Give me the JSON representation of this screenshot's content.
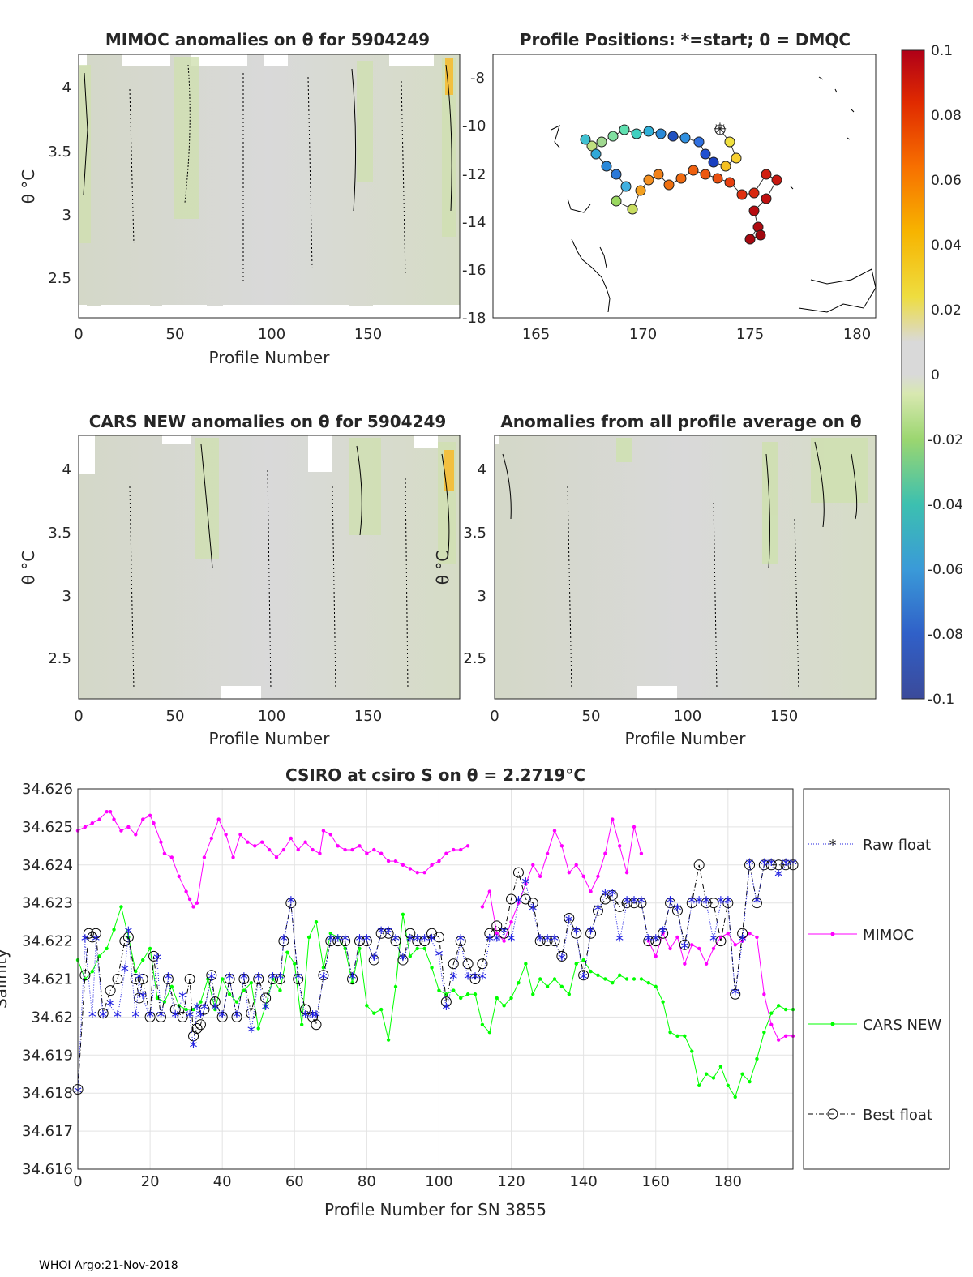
{
  "footer": "WHOI Argo:21-Nov-2018",
  "colorbar": {
    "ticks": [
      "0.1",
      "0.08",
      "0.06",
      "0.04",
      "0.02",
      "0",
      "-0.02",
      "-0.04",
      "-0.06",
      "-0.08",
      "-0.1"
    ],
    "range": [
      -0.1,
      0.1
    ]
  },
  "panels": [
    {
      "id": "mimoc",
      "title": "MIMOC anomalies on θ  for 5904249",
      "xlabel": "Profile Number",
      "ylabel": "θ °C",
      "xticks": [
        "0",
        "50",
        "100",
        "150"
      ],
      "yticks": [
        "4",
        "3.5",
        "3",
        "2.5"
      ]
    },
    {
      "id": "map",
      "title": "Profile Positions: *=start; 0 = DMQC",
      "xlabel": "",
      "ylabel": "",
      "xticks": [
        "165",
        "170",
        "175",
        "180"
      ],
      "yticks": [
        "-8",
        "-10",
        "-12",
        "-14",
        "-16",
        "-18"
      ]
    },
    {
      "id": "cars",
      "title": "CARS NEW anomalies on θ for 5904249",
      "xlabel": "Profile Number",
      "ylabel": "θ °C",
      "xticks": [
        "0",
        "50",
        "100",
        "150"
      ],
      "yticks": [
        "4",
        "3.5",
        "3",
        "2.5"
      ]
    },
    {
      "id": "avg",
      "title": "Anomalies from all profile average on θ",
      "xlabel": "Profile Number",
      "ylabel": "θ °C",
      "xticks": [
        "0",
        "50",
        "100",
        "150"
      ],
      "yticks": [
        "4",
        "3.5",
        "3",
        "2.5"
      ]
    }
  ],
  "chart_data": {
    "type": "line",
    "title": "CSIRO at csiro S on θ = 2.2719°C",
    "xlabel": "Profile Number for SN 3855",
    "ylabel": "Salinity",
    "xlim": [
      0,
      198
    ],
    "ylim": [
      34.616,
      34.626
    ],
    "grid": true,
    "xticks": [
      "0",
      "20",
      "40",
      "60",
      "80",
      "100",
      "120",
      "140",
      "160",
      "180"
    ],
    "yticks": [
      "34.626",
      "34.625",
      "34.624",
      "34.623",
      "34.622",
      "34.621",
      "34.62",
      "34.619",
      "34.618",
      "34.617",
      "34.616"
    ],
    "legend": [
      "Raw float",
      "MIMOC",
      "CARS NEW",
      "Best float"
    ],
    "legend_position": "right-outside",
    "series": [
      {
        "name": "MIMOC",
        "color": "#ff00ff",
        "marker": "dot",
        "x": [
          0,
          2,
          4,
          6,
          8,
          9,
          10,
          12,
          14,
          16,
          18,
          20,
          21,
          23,
          24,
          26,
          28,
          30,
          31,
          32,
          33,
          35,
          37,
          39,
          41,
          43,
          45,
          47,
          49,
          51,
          53,
          55,
          57,
          59,
          61,
          63,
          65,
          67,
          68,
          70,
          72,
          74,
          76,
          78,
          80,
          82,
          84,
          86,
          88,
          90,
          92,
          94,
          96,
          98,
          100,
          102,
          104,
          106,
          108
        ],
        "y": [
          34.6249,
          34.625,
          34.6251,
          34.6252,
          34.6254,
          34.6254,
          34.6252,
          34.6249,
          34.625,
          34.6248,
          34.6252,
          34.6253,
          34.6251,
          34.6246,
          34.6243,
          34.6242,
          34.6237,
          34.6233,
          34.6231,
          34.6229,
          34.623,
          34.6242,
          34.6247,
          34.6252,
          34.6248,
          34.6242,
          34.6248,
          34.6246,
          34.6245,
          34.6246,
          34.6244,
          34.6242,
          34.6244,
          34.6247,
          34.6244,
          34.6246,
          34.6244,
          34.6243,
          34.6249,
          34.6248,
          34.6245,
          34.6244,
          34.6244,
          34.6245,
          34.6243,
          34.6244,
          34.6243,
          34.6241,
          34.6241,
          34.624,
          34.6239,
          34.6238,
          34.6238,
          34.624,
          34.6241,
          34.6243,
          34.6244,
          34.6244,
          34.6245
        ]
      },
      {
        "name": "MIMOC_b",
        "color": "#ff00ff",
        "marker": "dot",
        "x": [
          112,
          114,
          116,
          118,
          120,
          122,
          124,
          126,
          128,
          130,
          132,
          134,
          136,
          138,
          140,
          142,
          144,
          146,
          148,
          150,
          152,
          154,
          156
        ],
        "y": [
          34.6229,
          34.6233,
          34.6222,
          34.622,
          34.6225,
          34.623,
          34.6235,
          34.624,
          34.6237,
          34.6243,
          34.6249,
          34.6245,
          34.6238,
          34.624,
          34.6237,
          34.6233,
          34.6237,
          34.6243,
          34.6252,
          34.6245,
          34.6238,
          34.625,
          34.6243
        ]
      },
      {
        "name": "MIMOC_c",
        "color": "#ff00ff",
        "marker": "dot",
        "x": [
          158,
          160,
          162,
          164,
          166,
          168,
          170,
          172,
          174,
          176,
          178,
          180,
          182,
          184,
          186,
          188,
          190,
          192,
          194,
          196,
          198
        ],
        "y": [
          34.622,
          34.6216,
          34.6222,
          34.6218,
          34.6221,
          34.6214,
          34.6219,
          34.6218,
          34.6214,
          34.6218,
          34.6221,
          34.6222,
          34.6219,
          34.622,
          34.6222,
          34.6221,
          34.6206,
          34.6198,
          34.6194,
          34.6195,
          34.6195
        ]
      },
      {
        "name": "CARS NEW",
        "color": "#00ff00",
        "marker": "dot",
        "x": [
          0,
          2,
          4,
          6,
          8,
          10,
          12,
          14,
          16,
          18,
          20,
          22,
          24,
          26,
          28,
          30,
          32,
          34,
          36,
          38,
          40,
          42,
          44,
          46,
          48,
          50,
          52,
          54,
          56,
          58,
          60,
          62,
          64,
          66,
          68,
          70,
          72,
          74,
          76,
          78,
          80,
          82,
          84,
          86,
          88,
          90,
          92,
          94,
          96,
          98,
          100,
          102,
          104,
          106,
          108,
          110,
          112,
          114,
          116,
          118,
          120,
          122,
          124,
          126,
          128,
          130,
          132,
          134,
          136,
          138,
          140,
          142,
          144,
          146,
          148,
          150,
          152,
          154,
          156,
          158,
          160,
          162,
          164,
          166,
          168,
          170,
          172,
          174,
          176,
          178,
          180,
          182,
          184,
          186,
          188,
          190,
          192,
          194,
          196,
          198
        ],
        "y": [
          34.6215,
          34.621,
          34.6212,
          34.6216,
          34.6218,
          34.6223,
          34.6229,
          34.6221,
          34.6212,
          34.6215,
          34.6218,
          34.6205,
          34.6204,
          34.6208,
          34.6203,
          34.6202,
          34.6202,
          34.6204,
          34.621,
          34.6202,
          34.621,
          34.6206,
          34.6204,
          34.6207,
          34.6209,
          34.6197,
          34.6203,
          34.621,
          34.6207,
          34.6217,
          34.6214,
          34.6198,
          34.6221,
          34.6225,
          34.6213,
          34.6222,
          34.6221,
          34.6218,
          34.6209,
          34.6218,
          34.6203,
          34.6201,
          34.6202,
          34.6194,
          34.6208,
          34.6227,
          34.6216,
          34.6218,
          34.6218,
          34.6213,
          34.6207,
          34.6206,
          34.6207,
          34.6205,
          34.6206,
          34.6206,
          34.6198,
          34.6196,
          34.6205,
          34.6203,
          34.6205,
          34.6209,
          34.6214,
          34.6206,
          34.621,
          34.6208,
          34.621,
          34.6208,
          34.6206,
          34.6214,
          34.6215,
          34.6212,
          34.6211,
          34.621,
          34.6209,
          34.6211,
          34.621,
          34.621,
          34.621,
          34.6209,
          34.6208,
          34.6204,
          34.6196,
          34.6195,
          34.6195,
          34.6191,
          34.6182,
          34.6185,
          34.6184,
          34.6187,
          34.6182,
          34.6179,
          34.6185,
          34.6183,
          34.6189,
          34.6196,
          34.6201,
          34.6203,
          34.6202,
          34.6202
        ]
      },
      {
        "name": "Raw float",
        "color": "#1f1fe0",
        "marker": "star",
        "x": [
          0,
          2,
          4,
          5,
          7,
          9,
          11,
          13,
          14,
          16,
          17,
          18,
          20,
          22,
          23,
          25,
          27,
          29,
          31,
          32,
          33,
          34,
          35,
          37,
          38,
          40,
          42,
          44,
          46,
          48,
          50,
          52,
          54,
          56,
          57,
          59,
          61,
          63,
          65,
          66,
          68,
          70,
          72,
          74,
          76,
          78,
          80,
          82,
          84,
          86,
          88,
          90,
          92,
          94,
          96,
          98,
          100,
          102,
          104,
          106,
          108,
          110,
          112,
          114,
          116,
          118,
          120,
          122,
          124,
          126,
          128,
          130,
          132,
          134,
          136,
          138,
          140,
          142,
          144,
          146,
          148,
          150,
          152,
          154,
          156,
          158,
          160,
          162,
          164,
          166,
          168,
          170,
          172,
          174,
          176,
          178,
          180,
          182,
          184,
          186,
          188,
          190,
          192,
          194,
          196,
          198
        ],
        "y": [
          34.618,
          34.622,
          34.62,
          34.622,
          34.62,
          34.6203,
          34.62,
          34.6212,
          34.6222,
          34.62,
          34.621,
          34.6205,
          34.62,
          34.6215,
          34.62,
          34.621,
          34.62,
          34.6205,
          34.62,
          34.6192,
          34.6202,
          34.62,
          34.6202,
          34.621,
          34.6202,
          34.62,
          34.621,
          34.62,
          34.621,
          34.6196,
          34.621,
          34.6202,
          34.621,
          34.621,
          34.622,
          34.623,
          34.621,
          34.62,
          34.62,
          34.62,
          34.621,
          34.622,
          34.622,
          34.622,
          34.621,
          34.622,
          34.622,
          34.6215,
          34.6222,
          34.6222,
          34.622,
          34.6215,
          34.622,
          34.622,
          34.622,
          34.622,
          34.6216,
          34.6202,
          34.621,
          34.622,
          34.621,
          34.621,
          34.621,
          34.622,
          34.622,
          34.6222,
          34.622,
          34.623,
          34.6235,
          34.6228,
          34.622,
          34.622,
          34.622,
          34.6215,
          34.6225,
          34.6222,
          34.621,
          34.6222,
          34.6228,
          34.6232,
          34.6232,
          34.622,
          34.623,
          34.623,
          34.623,
          34.622,
          34.622,
          34.6222,
          34.623,
          34.6228,
          34.6218,
          34.623,
          34.623,
          34.623,
          34.622,
          34.623,
          34.623,
          34.6206,
          34.622,
          34.624,
          34.623,
          34.624,
          34.624,
          34.6237,
          34.624,
          34.624
        ]
      },
      {
        "name": "Best float",
        "color": "#000000",
        "marker": "circle",
        "x": [
          0,
          2,
          3,
          4,
          5,
          7,
          9,
          11,
          13,
          14,
          16,
          17,
          18,
          20,
          21,
          23,
          25,
          27,
          29,
          31,
          32,
          33,
          34,
          35,
          37,
          38,
          40,
          42,
          44,
          46,
          48,
          50,
          52,
          54,
          56,
          57,
          59,
          61,
          63,
          65,
          66,
          68,
          70,
          72,
          74,
          76,
          78,
          80,
          82,
          84,
          86,
          88,
          90,
          92,
          94,
          96,
          98,
          100,
          102,
          104,
          106,
          108,
          110,
          112,
          114,
          116,
          118,
          120,
          122,
          124,
          126,
          128,
          130,
          132,
          134,
          136,
          138,
          140,
          142,
          144,
          146,
          148,
          150,
          152,
          154,
          156,
          158,
          160,
          162,
          164,
          166,
          168,
          170,
          172,
          174,
          176,
          178,
          180,
          182,
          184,
          186,
          188,
          190,
          192,
          194,
          196,
          198
        ],
        "y": [
          34.6181,
          34.6211,
          34.6222,
          34.6221,
          34.6222,
          34.6201,
          34.6207,
          34.621,
          34.622,
          34.6221,
          34.621,
          34.6205,
          34.621,
          34.62,
          34.6216,
          34.62,
          34.621,
          34.6202,
          34.62,
          34.621,
          34.6195,
          34.6197,
          34.6198,
          34.6202,
          34.6211,
          34.6204,
          34.62,
          34.621,
          34.62,
          34.621,
          34.6201,
          34.621,
          34.6205,
          34.621,
          34.621,
          34.622,
          34.623,
          34.621,
          34.6202,
          34.62,
          34.6198,
          34.6211,
          34.622,
          34.622,
          34.622,
          34.621,
          34.622,
          34.622,
          34.6215,
          34.6222,
          34.6222,
          34.622,
          34.6215,
          34.6222,
          34.622,
          34.622,
          34.6222,
          34.6221,
          34.6204,
          34.6214,
          34.622,
          34.6214,
          34.621,
          34.6214,
          34.6222,
          34.6224,
          34.6222,
          34.6231,
          34.6238,
          34.6231,
          34.623,
          34.622,
          34.622,
          34.622,
          34.6216,
          34.6226,
          34.6222,
          34.6211,
          34.6222,
          34.6228,
          34.6231,
          34.6232,
          34.6229,
          34.623,
          34.623,
          34.623,
          34.622,
          34.622,
          34.6222,
          34.623,
          34.6228,
          34.6219,
          34.623,
          34.624,
          34.623,
          34.623,
          34.622,
          34.623,
          34.6206,
          34.6222,
          34.624,
          34.623,
          34.624,
          34.624,
          34.624,
          34.624,
          34.624
        ]
      }
    ]
  }
}
